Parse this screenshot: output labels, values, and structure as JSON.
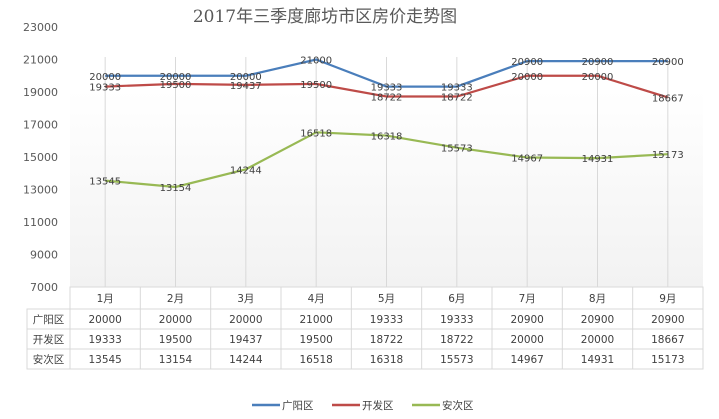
{
  "chart_data": {
    "type": "line",
    "title": "2017年三季度廊坊市区房价走势图",
    "categories": [
      "1月",
      "2月",
      "3月",
      "4月",
      "5月",
      "6月",
      "7月",
      "8月",
      "9月"
    ],
    "ylim": [
      7000,
      23000
    ],
    "yticks": [
      "7000",
      "9000",
      "11000",
      "13000",
      "15000",
      "17000",
      "19000",
      "21000",
      "23000"
    ],
    "grid": "vertical",
    "legend_position": "bottom",
    "series": [
      {
        "name": "广阳区",
        "color": "#4a7ebb",
        "values": [
          20000,
          20000,
          20000,
          21000,
          19333,
          19333,
          20900,
          20900,
          20900
        ]
      },
      {
        "name": "开发区",
        "color": "#be4b48",
        "values": [
          19333,
          19500,
          19437,
          19500,
          18722,
          18722,
          20000,
          20000,
          18667
        ]
      },
      {
        "name": "安次区",
        "color": "#98b954",
        "values": [
          13545,
          13154,
          14244,
          16518,
          16318,
          15573,
          14967,
          14931,
          15173
        ]
      }
    ]
  }
}
